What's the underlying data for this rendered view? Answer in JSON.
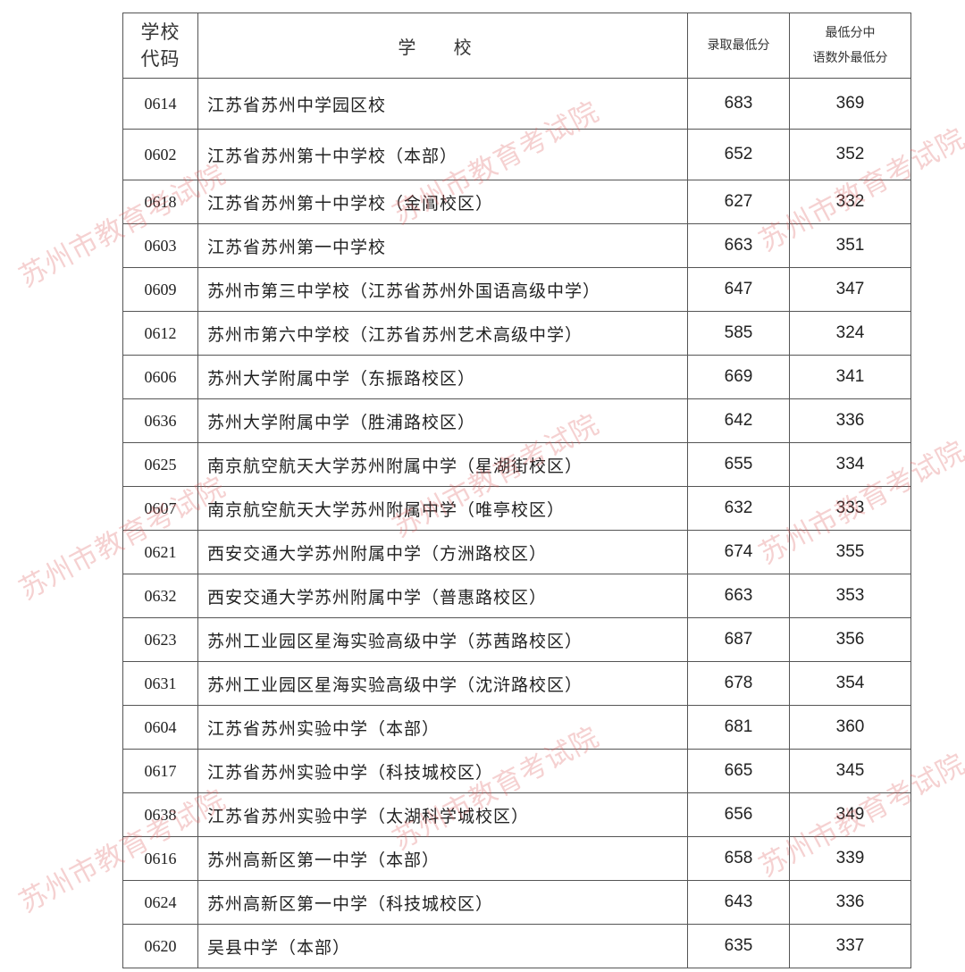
{
  "table": {
    "headers": {
      "code": "学校代码",
      "code_line1": "学校",
      "code_line2": "代码",
      "school": "学 校",
      "min_score": "录取最低分",
      "sub_line1": "最低分中",
      "sub_line2": "语数外最低分"
    },
    "rows": [
      {
        "code": "0614",
        "school": "江苏省苏州中学园区校",
        "min": "683",
        "sub": "369"
      },
      {
        "code": "0602",
        "school": "江苏省苏州第十中学校（本部）",
        "min": "652",
        "sub": "352"
      },
      {
        "code": "0618",
        "school": "江苏省苏州第十中学校（金阊校区）",
        "min": "627",
        "sub": "332"
      },
      {
        "code": "0603",
        "school": "江苏省苏州第一中学校",
        "min": "663",
        "sub": "351"
      },
      {
        "code": "0609",
        "school": "苏州市第三中学校（江苏省苏州外国语高级中学）",
        "min": "647",
        "sub": "347"
      },
      {
        "code": "0612",
        "school": "苏州市第六中学校（江苏省苏州艺术高级中学）",
        "min": "585",
        "sub": "324"
      },
      {
        "code": "0606",
        "school": "苏州大学附属中学（东振路校区）",
        "min": "669",
        "sub": "341"
      },
      {
        "code": "0636",
        "school": "苏州大学附属中学（胜浦路校区）",
        "min": "642",
        "sub": "336"
      },
      {
        "code": "0625",
        "school": "南京航空航天大学苏州附属中学（星湖街校区）",
        "min": "655",
        "sub": "334"
      },
      {
        "code": "0607",
        "school": "南京航空航天大学苏州附属中学（唯亭校区）",
        "min": "632",
        "sub": "333"
      },
      {
        "code": "0621",
        "school": "西安交通大学苏州附属中学（方洲路校区）",
        "min": "674",
        "sub": "355"
      },
      {
        "code": "0632",
        "school": "西安交通大学苏州附属中学（普惠路校区）",
        "min": "663",
        "sub": "353"
      },
      {
        "code": "0623",
        "school": "苏州工业园区星海实验高级中学（苏茜路校区）",
        "min": "687",
        "sub": "356"
      },
      {
        "code": "0631",
        "school": "苏州工业园区星海实验高级中学（沈浒路校区）",
        "min": "678",
        "sub": "354"
      },
      {
        "code": "0604",
        "school": "江苏省苏州实验中学（本部）",
        "min": "681",
        "sub": "360"
      },
      {
        "code": "0617",
        "school": "江苏省苏州实验中学（科技城校区）",
        "min": "665",
        "sub": "345"
      },
      {
        "code": "0638",
        "school": "江苏省苏州实验中学（太湖科学城校区）",
        "min": "656",
        "sub": "349"
      },
      {
        "code": "0616",
        "school": "苏州高新区第一中学（本部）",
        "min": "658",
        "sub": "339"
      },
      {
        "code": "0624",
        "school": "苏州高新区第一中学（科技城校区）",
        "min": "643",
        "sub": "336"
      },
      {
        "code": "0620",
        "school": "吴县中学（本部）",
        "min": "635",
        "sub": "337"
      }
    ]
  },
  "watermark": {
    "text": "苏州市教育考试院",
    "color": "#dc5a5a"
  }
}
